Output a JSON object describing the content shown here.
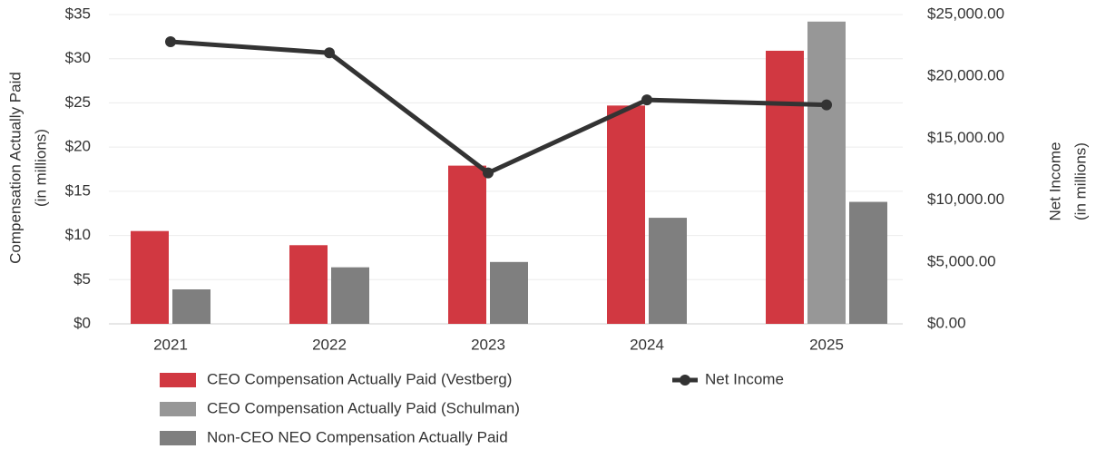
{
  "chart_data": {
    "type": "bar_line",
    "categories": [
      "2021",
      "2022",
      "2023",
      "2024",
      "2025"
    ],
    "series": [
      {
        "name": "CEO Compensation Actually Paid (Vestberg)",
        "color": "#d13841",
        "type": "bar",
        "values": [
          10.5,
          8.9,
          17.9,
          24.7,
          30.9
        ]
      },
      {
        "name": "CEO Compensation Actually Paid (Schulman)",
        "color": "#979797",
        "type": "bar",
        "values": [
          null,
          null,
          null,
          null,
          34.2
        ]
      },
      {
        "name": "Non-CEO NEO Compensation Actually Paid",
        "color": "#7f7f7f",
        "type": "bar",
        "values": [
          3.9,
          6.4,
          7.0,
          12.0,
          13.8
        ]
      },
      {
        "name": "Net Income",
        "color": "#333333",
        "type": "line",
        "axis": "y2",
        "values": [
          22800,
          21900,
          12200,
          18100,
          17700
        ]
      }
    ],
    "ylabel": [
      "Compensation Actually Paid",
      "(in millions)"
    ],
    "y2label": [
      "Net Income",
      "(in millions)"
    ],
    "ylim": [
      0,
      35
    ],
    "yticks": [
      {
        "value": 0,
        "label": "$0"
      },
      {
        "value": 5,
        "label": "$5"
      },
      {
        "value": 10,
        "label": "$10"
      },
      {
        "value": 15,
        "label": "$15"
      },
      {
        "value": 20,
        "label": "$20"
      },
      {
        "value": 25,
        "label": "$25"
      },
      {
        "value": 30,
        "label": "$30"
      },
      {
        "value": 35,
        "label": "$35"
      }
    ],
    "y2lim": [
      0,
      25000
    ],
    "y2ticks": [
      {
        "value": 0,
        "label": "$0.00"
      },
      {
        "value": 5000,
        "label": "$5,000.00"
      },
      {
        "value": 10000,
        "label": "$10,000.00"
      },
      {
        "value": 15000,
        "label": "$15,000.00"
      },
      {
        "value": 20000,
        "label": "$20,000.00"
      },
      {
        "value": 25000,
        "label": "$25,000.00"
      }
    ],
    "grid": true
  }
}
